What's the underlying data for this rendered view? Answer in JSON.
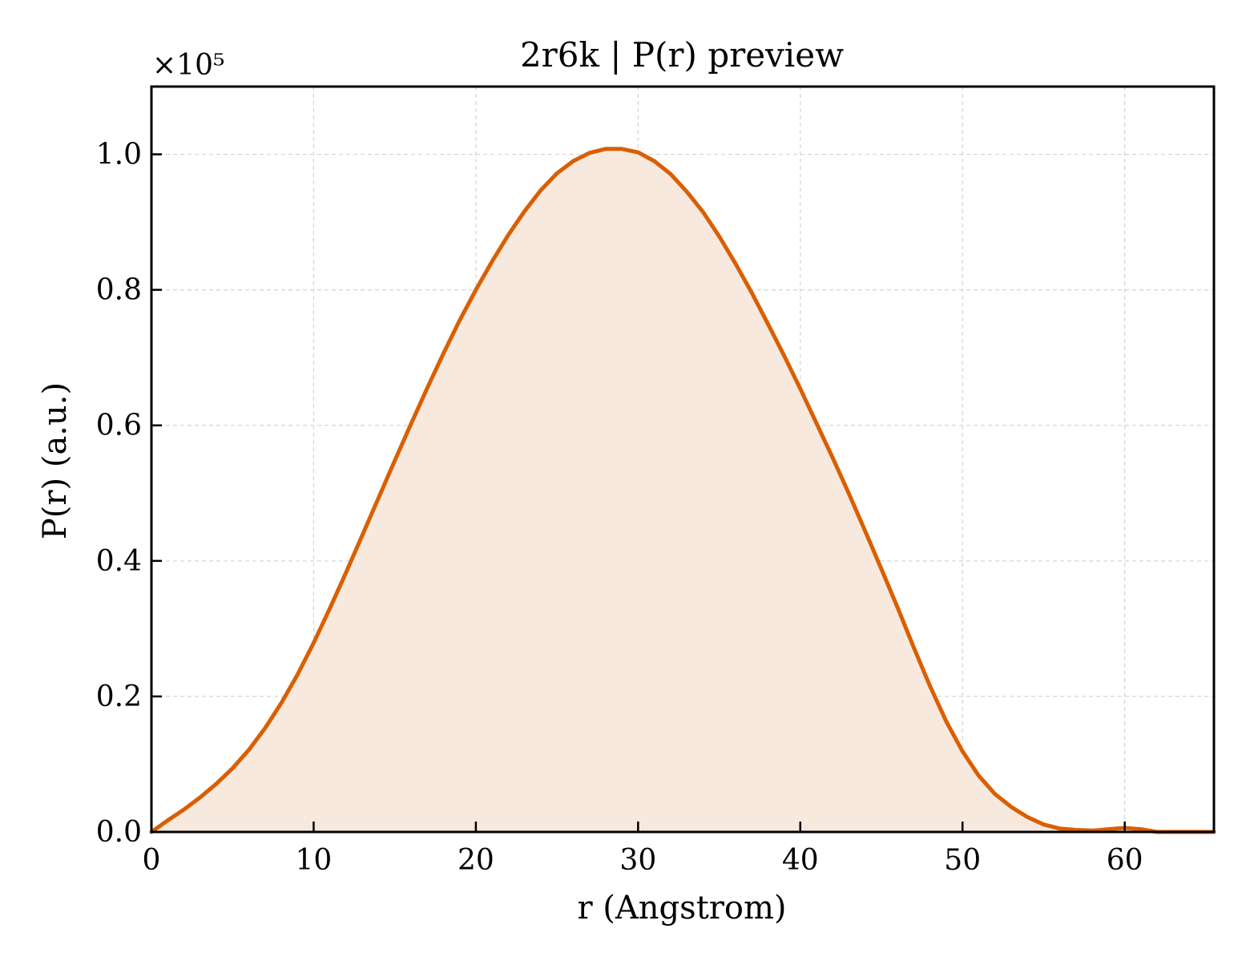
{
  "chart_data": {
    "type": "area",
    "title": "2r6k | P(r) preview",
    "xlabel": "r (Angstrom)",
    "ylabel": "P(r) (a.u.)",
    "y_offset_label": "×10⁵",
    "y_scale": 100000,
    "xlim": [
      0,
      65.5
    ],
    "ylim": [
      0,
      1.1
    ],
    "xticks": [
      0,
      10,
      20,
      30,
      40,
      50,
      60
    ],
    "xtick_labels": [
      "0",
      "10",
      "20",
      "30",
      "40",
      "50",
      "60"
    ],
    "yticks": [
      0.0,
      0.2,
      0.4,
      0.6,
      0.8,
      1.0
    ],
    "ytick_labels": [
      "0.0",
      "0.2",
      "0.4",
      "0.6",
      "0.8",
      "1.0"
    ],
    "grid": true,
    "line_color": "#D95F02",
    "fill_color": "#F8E9DF",
    "series": [
      {
        "x": [
          0,
          1,
          2,
          3,
          4,
          5,
          6,
          7,
          8,
          9,
          10,
          11,
          12,
          13,
          14,
          15,
          16,
          17,
          18,
          19,
          20,
          21,
          22,
          23,
          24,
          25,
          26,
          27,
          28,
          29,
          30,
          31,
          32,
          33,
          34,
          35,
          36,
          37,
          38,
          39,
          40,
          41,
          42,
          43,
          44,
          45,
          46,
          47,
          48,
          49,
          50,
          51,
          52,
          53,
          54,
          55,
          56,
          57,
          58,
          59,
          60,
          61,
          62,
          63,
          64,
          65,
          65.5
        ],
        "y": [
          0.0,
          0.017,
          0.033,
          0.051,
          0.071,
          0.094,
          0.121,
          0.153,
          0.19,
          0.232,
          0.279,
          0.33,
          0.383,
          0.438,
          0.493,
          0.548,
          0.602,
          0.655,
          0.706,
          0.755,
          0.8,
          0.842,
          0.881,
          0.916,
          0.947,
          0.972,
          0.99,
          1.002,
          1.008,
          1.008,
          1.003,
          0.99,
          0.971,
          0.945,
          0.915,
          0.879,
          0.839,
          0.796,
          0.75,
          0.703,
          0.654,
          0.603,
          0.552,
          0.499,
          0.444,
          0.388,
          0.331,
          0.272,
          0.215,
          0.163,
          0.119,
          0.083,
          0.056,
          0.037,
          0.022,
          0.011,
          0.005,
          0.003,
          0.002,
          0.004,
          0.006,
          0.004,
          0.0,
          0.0,
          0.0,
          0.0,
          0.0
        ]
      }
    ]
  }
}
